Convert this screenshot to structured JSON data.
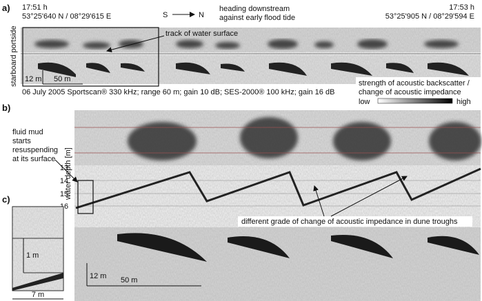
{
  "panel_a": {
    "label": "a)",
    "start_time": "17:51 h",
    "start_position": "53°25'640 N / 08°29'615 E",
    "direction_from": "S",
    "direction_to": "N",
    "heading_line1": "heading downstream",
    "heading_line2": "against early flood tide",
    "end_time": "17:53 h",
    "end_position": "53°25'905 N / 08°29'594 E",
    "side_label": "starboard portside",
    "annotation": "track of water surface",
    "scale_vertical": "12 m",
    "scale_horizontal": "50 m",
    "caption": "06 July 2005 Sportscan® 330 kHz; range 60 m; gain 10 dB; SES-2000® 100 kHz; gain 16 dB"
  },
  "legend": {
    "title_line1": "strength of acoustic backscatter /",
    "title_line2": "change of acoustic impedance",
    "low": "low",
    "high": "high"
  },
  "panel_b": {
    "label": "b)",
    "note": [
      "fluid mud",
      "starts",
      "resuspending",
      "at its surface"
    ],
    "depth_axis_title": "water depth [m]",
    "depth_ticks": [
      "13",
      "14",
      "15",
      "16"
    ],
    "annotation": "different grade of change of acoustic impedance in dune troughs",
    "scale_vertical": "12 m",
    "scale_horizontal": "50 m"
  },
  "panel_c": {
    "label": "c)",
    "scale_vertical": "1 m",
    "scale_horizontal": "7 m"
  }
}
